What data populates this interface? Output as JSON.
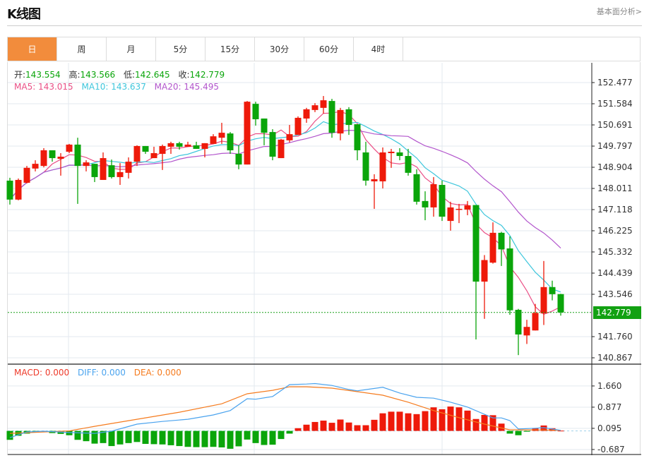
{
  "header": {
    "title": "K线图",
    "fundamental_link": "基本面分析>"
  },
  "tabs": [
    {
      "label": "日",
      "active": true
    },
    {
      "label": "周",
      "active": false
    },
    {
      "label": "月",
      "active": false
    },
    {
      "label": "5分",
      "active": false
    },
    {
      "label": "15分",
      "active": false
    },
    {
      "label": "30分",
      "active": false
    },
    {
      "label": "60分",
      "active": false
    },
    {
      "label": "4时",
      "active": false
    }
  ],
  "ohlc_info": {
    "open_label": "开:",
    "open": "143.554",
    "high_label": "高:",
    "high": "143.566",
    "low_label": "低:",
    "low": "142.645",
    "close_label": "收:",
    "close": "142.779"
  },
  "ma_info": {
    "ma5": "MA5: 143.015",
    "ma10": "MA10: 143.637",
    "ma20": "MA20: 145.495"
  },
  "macd_info": {
    "macd": "MACD: 0.000",
    "diff": "DIFF: 0.000",
    "dea": "DEA: 0.000"
  },
  "last_price": "142.779",
  "colors": {
    "up": "#ee1a0a",
    "down": "#0aa50a",
    "ma5": "#ea4f86",
    "ma10": "#3ec6dc",
    "ma20": "#b255cc",
    "diff": "#4aa3ee",
    "dea": "#f57b1e",
    "accent": "#f28c3c"
  },
  "chart_data": {
    "type": "candlestick",
    "y_ticks": [
      "152.477",
      "151.584",
      "150.691",
      "149.797",
      "148.904",
      "148.011",
      "147.118",
      "146.225",
      "145.332",
      "144.439",
      "143.546",
      "141.760",
      "140.867"
    ],
    "y_range": [
      140.867,
      152.477
    ],
    "macd_ticks": [
      "1.660",
      "0.877",
      "0.095",
      "-0.687"
    ],
    "candles": [
      [
        148.34,
        148.46,
        147.33,
        147.54
      ],
      [
        147.54,
        148.43,
        147.51,
        148.37
      ],
      [
        148.25,
        148.96,
        148.22,
        148.88
      ],
      [
        148.85,
        149.2,
        148.73,
        149.05
      ],
      [
        148.96,
        149.71,
        148.9,
        149.62
      ],
      [
        149.62,
        149.62,
        149.14,
        149.29
      ],
      [
        149.26,
        149.5,
        148.55,
        149.35
      ],
      [
        149.56,
        149.89,
        149.5,
        149.86
      ],
      [
        149.86,
        150.15,
        147.36,
        148.96
      ],
      [
        148.96,
        149.2,
        148.73,
        149.11
      ],
      [
        149.05,
        149.05,
        148.28,
        148.49
      ],
      [
        148.37,
        149.53,
        148.37,
        149.29
      ],
      [
        148.99,
        149.23,
        148.43,
        148.49
      ],
      [
        148.49,
        149.08,
        148.16,
        148.7
      ],
      [
        148.67,
        149.32,
        148.43,
        149.14
      ],
      [
        149.14,
        149.83,
        148.96,
        149.8
      ],
      [
        149.8,
        149.8,
        149.47,
        149.56
      ],
      [
        149.29,
        149.77,
        149.29,
        149.5
      ],
      [
        149.47,
        149.86,
        148.79,
        149.8
      ],
      [
        149.77,
        149.98,
        149.47,
        149.92
      ],
      [
        149.92,
        149.98,
        149.65,
        149.77
      ],
      [
        149.77,
        149.98,
        149.77,
        149.86
      ],
      [
        149.83,
        149.98,
        149.68,
        149.68
      ],
      [
        149.68,
        149.92,
        149.32,
        149.92
      ],
      [
        149.89,
        150.3,
        149.89,
        150.21
      ],
      [
        150.15,
        150.78,
        149.89,
        150.36
      ],
      [
        150.33,
        150.39,
        149.47,
        149.62
      ],
      [
        149.47,
        149.83,
        148.82,
        149.02
      ],
      [
        149.02,
        151.7,
        149.02,
        151.67
      ],
      [
        151.58,
        151.67,
        150.66,
        150.93
      ],
      [
        150.96,
        150.96,
        149.83,
        150.36
      ],
      [
        150.39,
        150.51,
        149.2,
        149.35
      ],
      [
        149.29,
        150.1,
        149.29,
        150.07
      ],
      [
        150.04,
        150.69,
        149.95,
        150.3
      ],
      [
        150.27,
        151.05,
        150.27,
        150.99
      ],
      [
        150.96,
        151.41,
        150.78,
        151.35
      ],
      [
        151.32,
        151.61,
        151.23,
        151.52
      ],
      [
        151.41,
        151.91,
        151.17,
        151.73
      ],
      [
        151.7,
        151.79,
        150.15,
        150.36
      ],
      [
        150.33,
        151.41,
        150.04,
        151.32
      ],
      [
        151.35,
        151.44,
        150.27,
        150.69
      ],
      [
        150.72,
        150.72,
        149.2,
        149.62
      ],
      [
        149.53,
        149.98,
        148.13,
        148.34
      ],
      [
        148.31,
        148.61,
        147.15,
        148.4
      ],
      [
        148.31,
        149.74,
        148.01,
        149.53
      ],
      [
        149.5,
        149.68,
        148.88,
        149.56
      ],
      [
        149.53,
        149.71,
        149.2,
        149.38
      ],
      [
        149.38,
        149.68,
        148.55,
        148.67
      ],
      [
        148.61,
        148.82,
        147.33,
        147.45
      ],
      [
        147.48,
        147.89,
        146.67,
        147.21
      ],
      [
        147.21,
        148.49,
        146.82,
        148.19
      ],
      [
        148.16,
        148.34,
        146.64,
        146.82
      ],
      [
        146.64,
        147.45,
        146.23,
        147.21
      ],
      [
        147.12,
        147.36,
        146.55,
        147.15
      ],
      [
        147.12,
        147.48,
        146.88,
        147.3
      ],
      [
        147.31,
        147.31,
        141.64,
        144.08
      ],
      [
        144.08,
        145.2,
        142.51,
        144.99
      ],
      [
        144.88,
        146.58,
        144.84,
        146.14
      ],
      [
        146.14,
        146.18,
        144.74,
        145.44
      ],
      [
        145.48,
        145.99,
        142.68,
        142.87
      ],
      [
        142.89,
        142.93,
        140.98,
        141.85
      ],
      [
        141.81,
        142.47,
        141.45,
        142.17
      ],
      [
        142.02,
        143.14,
        142.02,
        142.76
      ],
      [
        142.74,
        144.95,
        142.25,
        143.85
      ],
      [
        143.85,
        144.12,
        143.29,
        143.55
      ],
      [
        143.554,
        143.566,
        142.645,
        142.779
      ]
    ],
    "macd_hist": [
      -0.33,
      -0.18,
      -0.1,
      -0.05,
      -0.02,
      -0.08,
      -0.11,
      -0.16,
      -0.33,
      -0.38,
      -0.47,
      -0.45,
      -0.56,
      -0.5,
      -0.45,
      -0.41,
      -0.48,
      -0.49,
      -0.5,
      -0.53,
      -0.56,
      -0.59,
      -0.6,
      -0.6,
      -0.59,
      -0.61,
      -0.66,
      -0.57,
      -0.32,
      -0.45,
      -0.52,
      -0.51,
      -0.3,
      -0.1,
      0.1,
      0.23,
      0.33,
      0.38,
      0.3,
      0.42,
      0.31,
      0.21,
      0.21,
      0.41,
      0.65,
      0.71,
      0.71,
      0.65,
      0.62,
      0.73,
      0.87,
      0.8,
      0.9,
      0.87,
      0.75,
      0.44,
      0.59,
      0.58,
      0.27,
      -0.1,
      -0.16,
      -0.03,
      0.09,
      0.2,
      0.1,
      0.01
    ],
    "diff": [
      [
        0,
        -0.25
      ],
      [
        2,
        -0.04
      ],
      [
        4,
        -0.01
      ],
      [
        7,
        -0.06
      ],
      [
        10,
        -0.09
      ],
      [
        12,
        -0.01
      ],
      [
        15,
        0.25
      ],
      [
        18,
        0.35
      ],
      [
        21,
        0.43
      ],
      [
        24,
        0.59
      ],
      [
        26,
        0.75
      ],
      [
        28,
        1.19
      ],
      [
        29,
        1.17
      ],
      [
        31,
        1.27
      ],
      [
        33,
        1.71
      ],
      [
        35,
        1.73
      ],
      [
        36,
        1.75
      ],
      [
        38,
        1.68
      ],
      [
        40,
        1.53
      ],
      [
        41,
        1.48
      ],
      [
        44,
        1.61
      ],
      [
        46,
        1.4
      ],
      [
        48,
        1.24
      ],
      [
        50,
        1.21
      ],
      [
        52,
        1.06
      ],
      [
        54,
        0.88
      ],
      [
        57,
        0.48
      ],
      [
        58,
        0.48
      ],
      [
        59,
        0.38
      ],
      [
        60,
        0.07
      ],
      [
        62,
        0.1
      ],
      [
        63,
        0.12
      ],
      [
        64,
        0.07
      ],
      [
        65,
        0.02
      ]
    ],
    "dea": [
      [
        0,
        -0.09
      ],
      [
        7,
        0.0
      ],
      [
        10,
        0.17
      ],
      [
        15,
        0.43
      ],
      [
        20,
        0.69
      ],
      [
        25,
        1.0
      ],
      [
        28,
        1.37
      ],
      [
        31,
        1.5
      ],
      [
        33,
        1.63
      ],
      [
        35,
        1.63
      ],
      [
        38,
        1.58
      ],
      [
        41,
        1.45
      ],
      [
        44,
        1.32
      ],
      [
        47,
        1.06
      ],
      [
        50,
        0.75
      ],
      [
        53,
        0.49
      ],
      [
        56,
        0.25
      ],
      [
        59,
        0.04
      ],
      [
        62,
        0.04
      ],
      [
        65,
        0.02
      ]
    ]
  }
}
